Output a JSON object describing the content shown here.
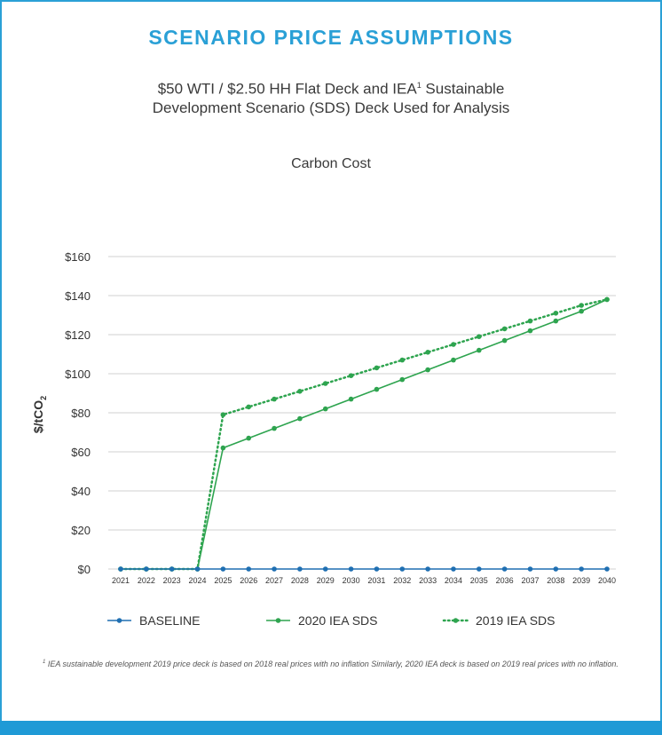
{
  "header": {
    "heading": "SCENARIO PRICE ASSUMPTIONS",
    "subtitle_line1_pre": "$50 WTI / $2.50 HH Flat Deck and IEA",
    "subtitle_sup": "1",
    "subtitle_line1_post": " Sustainable",
    "subtitle_line2": "Development Scenario (SDS) Deck Used for Analysis"
  },
  "footnote": {
    "marker": "1",
    "text": " IEA sustainable development 2019 price deck is based on 2018 real prices with no inflation Similarly, 2020 IEA deck is based on 2019 real prices with no inflation."
  },
  "colors": {
    "accent": "#2aa0d6",
    "baseline": "#1f6fb2",
    "green": "#2ea44f",
    "grid": "#d0d0d0",
    "text": "#333333"
  },
  "chart_data": {
    "type": "line",
    "title": "Carbon Cost",
    "ylabel": "$/tCO",
    "ylabel_sub": "2",
    "xlabel": "",
    "x": [
      "2021",
      "2022",
      "2023",
      "2024",
      "2025",
      "2026",
      "2027",
      "2028",
      "2029",
      "2030",
      "2031",
      "2032",
      "2033",
      "2034",
      "2035",
      "2036",
      "2037",
      "2038",
      "2039",
      "2040"
    ],
    "ylim": [
      0,
      160
    ],
    "yticks": [
      0,
      20,
      40,
      60,
      80,
      100,
      120,
      140,
      160
    ],
    "ytick_labels": [
      "$0",
      "$20",
      "$40",
      "$60",
      "$80",
      "$100",
      "$120",
      "$140",
      "$160"
    ],
    "grid": true,
    "legend_position": "bottom",
    "series": [
      {
        "name": "BASELINE",
        "style": "solid",
        "color": "#1f6fb2",
        "values": [
          0,
          0,
          0,
          0,
          0,
          0,
          0,
          0,
          0,
          0,
          0,
          0,
          0,
          0,
          0,
          0,
          0,
          0,
          0,
          0
        ]
      },
      {
        "name": "2020 IEA SDS",
        "style": "solid",
        "color": "#2ea44f",
        "values": [
          0,
          0,
          0,
          0,
          62,
          67,
          72,
          77,
          82,
          87,
          92,
          97,
          102,
          107,
          112,
          117,
          122,
          127,
          132,
          138
        ]
      },
      {
        "name": "2019 IEA SDS",
        "style": "dotted",
        "color": "#2ea44f",
        "values": [
          0,
          0,
          0,
          0,
          79,
          83,
          87,
          91,
          95,
          99,
          103,
          107,
          111,
          115,
          119,
          123,
          127,
          131,
          135,
          138
        ]
      }
    ]
  }
}
